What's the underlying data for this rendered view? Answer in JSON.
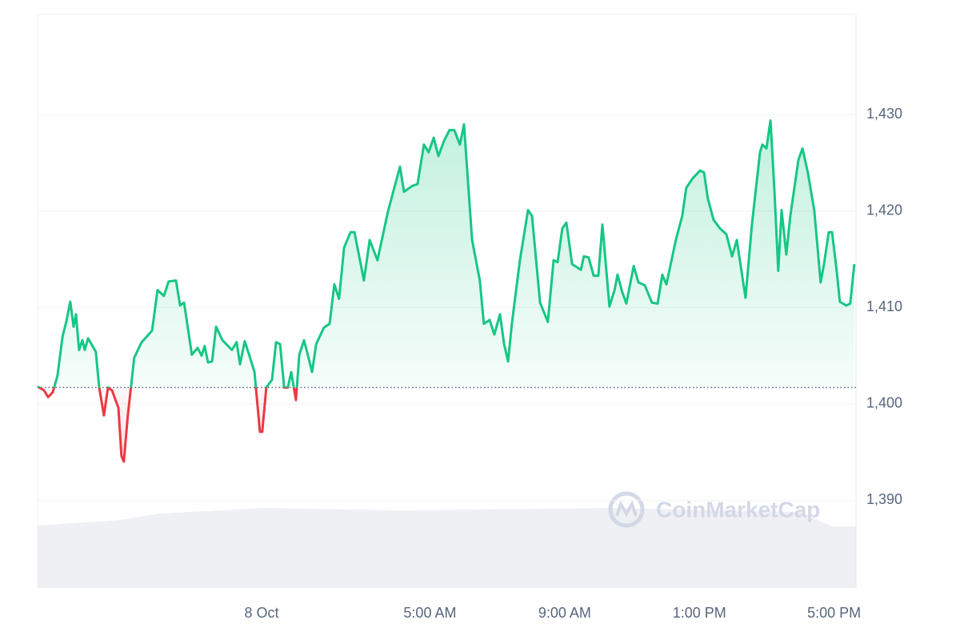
{
  "chart_data": {
    "type": "line",
    "x": [
      -6.65,
      -6.46,
      -6.34,
      -6.2,
      -6.06,
      -5.91,
      -5.8,
      -5.68,
      -5.58,
      -5.51,
      -5.42,
      -5.32,
      -5.25,
      -5.15,
      -4.92,
      -4.82,
      -4.68,
      -4.56,
      -4.44,
      -4.25,
      -4.16,
      -4.09,
      -3.97,
      -3.78,
      -3.56,
      -3.25,
      -3.09,
      -2.9,
      -2.76,
      -2.54,
      -2.42,
      -2.3,
      -2.07,
      -1.9,
      -1.78,
      -1.69,
      -1.59,
      -1.47,
      -1.35,
      -1.16,
      -0.88,
      -0.74,
      -0.64,
      -0.5,
      -0.36,
      -0.21,
      -0.05,
      0.02,
      0.14,
      0.31,
      0.43,
      0.55,
      0.67,
      0.78,
      0.88,
      1.02,
      1.12,
      1.26,
      1.35,
      1.5,
      1.62,
      1.85,
      2.02,
      2.16,
      2.3,
      2.45,
      2.64,
      2.76,
      3.04,
      3.21,
      3.44,
      3.75,
      3.97,
      4.11,
      4.23,
      4.47,
      4.63,
      4.82,
      4.96,
      5.11,
      5.25,
      5.42,
      5.58,
      5.72,
      5.89,
      6.01,
      6.25,
      6.48,
      6.6,
      6.77,
      6.91,
      7.08,
      7.2,
      7.32,
      7.43,
      7.67,
      7.91,
      8.03,
      8.27,
      8.5,
      8.67,
      8.79,
      8.93,
      9.05,
      9.22,
      9.48,
      9.57,
      9.71,
      9.86,
      10.0,
      10.12,
      10.33,
      10.48,
      10.57,
      10.71,
      10.83,
      11.05,
      11.19,
      11.38,
      11.59,
      11.76,
      11.9,
      12.02,
      12.3,
      12.49,
      12.61,
      12.8,
      13.02,
      13.14,
      13.25,
      13.42,
      13.61,
      13.8,
      13.97,
      14.11,
      14.37,
      14.56,
      14.8,
      14.87,
      14.99,
      15.11,
      15.23,
      15.34,
      15.44,
      15.58,
      15.7,
      15.94,
      16.06,
      16.22,
      16.41,
      16.6,
      16.7,
      16.84,
      16.94,
      17.08,
      17.17,
      17.36,
      17.48,
      17.6
    ],
    "values": [
      1401.8,
      1401.4,
      1400.7,
      1401.2,
      1402.9,
      1407.0,
      1408.5,
      1410.6,
      1408.0,
      1409.3,
      1405.6,
      1406.6,
      1405.6,
      1406.8,
      1405.4,
      1401.7,
      1398.8,
      1401.7,
      1401.4,
      1399.6,
      1394.6,
      1394.0,
      1398.8,
      1404.8,
      1406.4,
      1407.6,
      1411.8,
      1411.2,
      1412.7,
      1412.8,
      1410.2,
      1410.5,
      1405.1,
      1405.8,
      1405.0,
      1406.0,
      1404.3,
      1404.4,
      1408.0,
      1406.6,
      1405.6,
      1406.4,
      1404.1,
      1406.5,
      1405.0,
      1403.3,
      1397.1,
      1397.1,
      1401.7,
      1402.5,
      1406.4,
      1406.2,
      1401.7,
      1401.7,
      1403.3,
      1400.4,
      1405.1,
      1406.6,
      1405.4,
      1403.3,
      1406.2,
      1407.9,
      1408.3,
      1412.4,
      1410.9,
      1416.2,
      1417.8,
      1417.8,
      1412.8,
      1417.0,
      1414.9,
      1419.9,
      1422.8,
      1424.6,
      1422.0,
      1422.6,
      1422.8,
      1426.9,
      1426.1,
      1427.6,
      1425.7,
      1427.3,
      1428.4,
      1428.4,
      1426.9,
      1429.0,
      1417.0,
      1412.8,
      1408.3,
      1408.7,
      1407.2,
      1409.3,
      1406.2,
      1404.4,
      1408.3,
      1414.9,
      1420.1,
      1419.5,
      1410.5,
      1408.5,
      1414.9,
      1414.7,
      1418.2,
      1418.8,
      1414.5,
      1413.9,
      1415.3,
      1415.2,
      1413.3,
      1413.3,
      1418.6,
      1410.1,
      1411.8,
      1413.4,
      1411.6,
      1410.4,
      1414.3,
      1412.6,
      1412.3,
      1410.5,
      1410.4,
      1413.4,
      1412.4,
      1417.0,
      1419.5,
      1422.4,
      1423.4,
      1424.2,
      1424.0,
      1421.3,
      1419.1,
      1418.2,
      1417.6,
      1415.3,
      1417.0,
      1411.0,
      1418.6,
      1426.1,
      1426.9,
      1426.5,
      1429.4,
      1422.0,
      1413.8,
      1420.1,
      1415.5,
      1419.5,
      1425.3,
      1426.5,
      1424.0,
      1420.1,
      1412.6,
      1414.5,
      1417.8,
      1417.8,
      1413.7,
      1410.6,
      1410.2,
      1410.4,
      1414.5
    ],
    "baseline": 1401.7,
    "up_color": "#16c784",
    "down_color": "#ea3943",
    "xlim": [
      -6.65,
      17.65
    ],
    "ylim": [
      1380.9,
      1440.4
    ],
    "xticks": [
      {
        "value": 0,
        "label": "8 Oct"
      },
      {
        "value": 5,
        "label": "5:00 AM"
      },
      {
        "value": 9,
        "label": "9:00 AM"
      },
      {
        "value": 13,
        "label": "1:00 PM"
      },
      {
        "value": 17,
        "label": "5:00 PM"
      }
    ],
    "yticks": [
      {
        "value": 1390,
        "label": "1,390"
      },
      {
        "value": 1400,
        "label": "1,400"
      },
      {
        "value": 1410,
        "label": "1,410"
      },
      {
        "value": 1420,
        "label": "1,420"
      },
      {
        "value": 1430,
        "label": "1,430"
      }
    ],
    "grid": true,
    "watermark": "CoinMarketCap"
  }
}
